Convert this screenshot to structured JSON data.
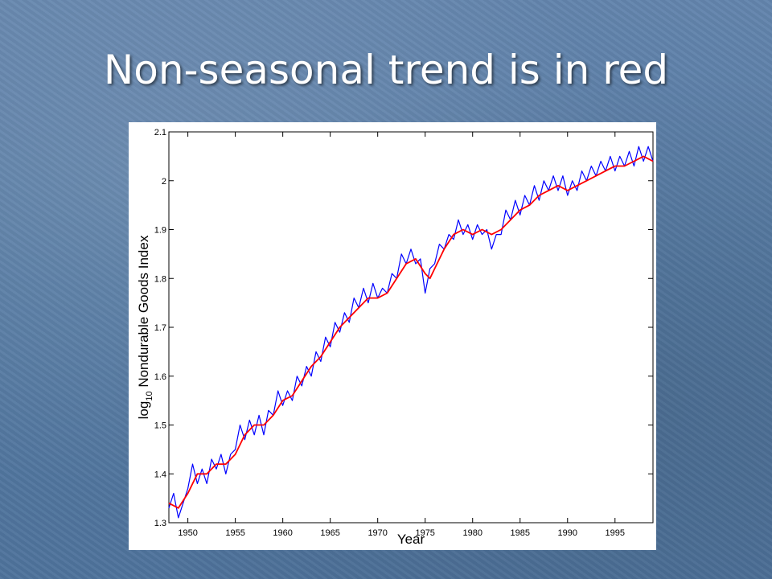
{
  "slide": {
    "title": "Non-seasonal trend is in red"
  },
  "chart_data": {
    "type": "line",
    "title": "",
    "xlabel": "Year",
    "ylabel_main": "log",
    "ylabel_sub": "10",
    "ylabel_rest": " Nondurable Goods Index",
    "xlim": [
      1948,
      1999
    ],
    "ylim": [
      1.3,
      2.1
    ],
    "x_ticks": [
      1950,
      1955,
      1960,
      1965,
      1970,
      1975,
      1980,
      1985,
      1990,
      1995
    ],
    "y_ticks": [
      1.3,
      1.4,
      1.5,
      1.6,
      1.7,
      1.8,
      1.9,
      2.0,
      2.1
    ],
    "y_tick_labels": [
      "1.3",
      "1.4",
      "1.5",
      "1.6",
      "1.7",
      "1.8",
      "1.9",
      "2",
      "2.1"
    ],
    "grid": false,
    "series": [
      {
        "role": "observed",
        "color": "#0000ff",
        "x": [
          1948.0,
          1948.5,
          1949.0,
          1949.5,
          1950.0,
          1950.5,
          1951.0,
          1951.5,
          1952.0,
          1952.5,
          1953.0,
          1953.5,
          1954.0,
          1954.5,
          1955.0,
          1955.5,
          1956.0,
          1956.5,
          1957.0,
          1957.5,
          1958.0,
          1958.5,
          1959.0,
          1959.5,
          1960.0,
          1960.5,
          1961.0,
          1961.5,
          1962.0,
          1962.5,
          1963.0,
          1963.5,
          1964.0,
          1964.5,
          1965.0,
          1965.5,
          1966.0,
          1966.5,
          1967.0,
          1967.5,
          1968.0,
          1968.5,
          1969.0,
          1969.5,
          1970.0,
          1970.5,
          1971.0,
          1971.5,
          1972.0,
          1972.5,
          1973.0,
          1973.5,
          1974.0,
          1974.5,
          1975.0,
          1975.5,
          1976.0,
          1976.5,
          1977.0,
          1977.5,
          1978.0,
          1978.5,
          1979.0,
          1979.5,
          1980.0,
          1980.5,
          1981.0,
          1981.5,
          1982.0,
          1982.5,
          1983.0,
          1983.5,
          1984.0,
          1984.5,
          1985.0,
          1985.5,
          1986.0,
          1986.5,
          1987.0,
          1987.5,
          1988.0,
          1988.5,
          1989.0,
          1989.5,
          1990.0,
          1990.5,
          1991.0,
          1991.5,
          1992.0,
          1992.5,
          1993.0,
          1993.5,
          1994.0,
          1994.5,
          1995.0,
          1995.5,
          1996.0,
          1996.5,
          1997.0,
          1997.5,
          1998.0,
          1998.5,
          1999.0
        ],
        "y": [
          1.33,
          1.36,
          1.31,
          1.34,
          1.37,
          1.42,
          1.38,
          1.41,
          1.38,
          1.43,
          1.41,
          1.44,
          1.4,
          1.44,
          1.45,
          1.5,
          1.47,
          1.51,
          1.48,
          1.52,
          1.48,
          1.53,
          1.52,
          1.57,
          1.54,
          1.57,
          1.55,
          1.6,
          1.58,
          1.62,
          1.6,
          1.65,
          1.63,
          1.68,
          1.66,
          1.71,
          1.69,
          1.73,
          1.71,
          1.76,
          1.74,
          1.78,
          1.75,
          1.79,
          1.76,
          1.78,
          1.77,
          1.81,
          1.8,
          1.85,
          1.83,
          1.86,
          1.83,
          1.84,
          1.77,
          1.82,
          1.83,
          1.87,
          1.86,
          1.89,
          1.88,
          1.92,
          1.89,
          1.91,
          1.88,
          1.91,
          1.89,
          1.9,
          1.86,
          1.89,
          1.89,
          1.94,
          1.92,
          1.96,
          1.93,
          1.97,
          1.95,
          1.99,
          1.96,
          2.0,
          1.98,
          2.01,
          1.98,
          2.01,
          1.97,
          2.0,
          1.98,
          2.02,
          2.0,
          2.03,
          2.01,
          2.04,
          2.02,
          2.05,
          2.02,
          2.05,
          2.03,
          2.06,
          2.03,
          2.07,
          2.04,
          2.07,
          2.04
        ]
      },
      {
        "role": "trend",
        "color": "#ff0000",
        "x": [
          1948.0,
          1949.0,
          1950.0,
          1951.0,
          1952.0,
          1953.0,
          1954.0,
          1955.0,
          1956.0,
          1957.0,
          1958.0,
          1959.0,
          1960.0,
          1961.0,
          1962.0,
          1963.0,
          1964.0,
          1965.0,
          1966.0,
          1967.0,
          1968.0,
          1969.0,
          1970.0,
          1971.0,
          1972.0,
          1973.0,
          1974.0,
          1975.0,
          1975.5,
          1976.0,
          1977.0,
          1978.0,
          1979.0,
          1980.0,
          1981.0,
          1982.0,
          1983.0,
          1984.0,
          1985.0,
          1986.0,
          1987.0,
          1988.0,
          1989.0,
          1990.0,
          1991.0,
          1992.0,
          1993.0,
          1994.0,
          1995.0,
          1996.0,
          1997.0,
          1998.0,
          1999.0
        ],
        "y": [
          1.34,
          1.33,
          1.36,
          1.4,
          1.4,
          1.42,
          1.42,
          1.44,
          1.48,
          1.5,
          1.5,
          1.52,
          1.55,
          1.56,
          1.59,
          1.62,
          1.64,
          1.67,
          1.7,
          1.72,
          1.74,
          1.76,
          1.76,
          1.77,
          1.8,
          1.83,
          1.84,
          1.81,
          1.8,
          1.82,
          1.86,
          1.89,
          1.9,
          1.89,
          1.9,
          1.89,
          1.9,
          1.92,
          1.94,
          1.95,
          1.97,
          1.98,
          1.99,
          1.98,
          1.99,
          2.0,
          2.01,
          2.02,
          2.03,
          2.03,
          2.04,
          2.05,
          2.04
        ]
      }
    ]
  }
}
